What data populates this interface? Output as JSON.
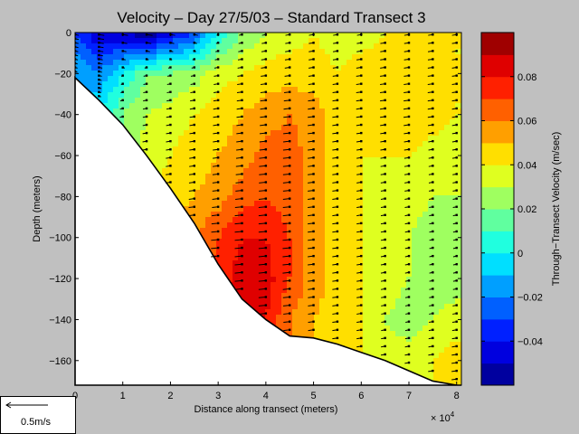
{
  "chart_data": {
    "type": "heatmap",
    "title": "Velocity – Day 27/5/03 – Standard Transect 3",
    "xlabel": "Distance along transect (meters)",
    "ylabel": "Depth (meters)",
    "x_exponent_label": "× 10",
    "x_exponent_power": "4",
    "xlim": [
      0,
      8.1
    ],
    "ylim": [
      -172,
      0
    ],
    "x_ticks": [
      "0",
      "1",
      "2",
      "3",
      "4",
      "5",
      "6",
      "7",
      "8"
    ],
    "y_ticks": [
      "0",
      "−20",
      "−40",
      "−60",
      "−80",
      "−100",
      "−120",
      "−140",
      "−160"
    ],
    "x_tick_values": [
      0,
      1,
      2,
      3,
      4,
      5,
      6,
      7,
      8
    ],
    "y_tick_values": [
      0,
      -20,
      -40,
      -60,
      -80,
      -100,
      -120,
      -140,
      -160
    ],
    "colorbar_label": "Through−Transect Velocity (m/sec)",
    "colorbar_ticks": [
      "0.08",
      "0.06",
      "0.04",
      "0.02",
      "0",
      "−0.02",
      "−0.04"
    ],
    "colorbar_tick_values": [
      0.08,
      0.06,
      0.04,
      0.02,
      0,
      -0.02,
      -0.04
    ],
    "clim": [
      -0.06,
      0.1
    ],
    "bottom_profile": {
      "x": [
        0,
        0.5,
        1.0,
        1.5,
        2.0,
        2.5,
        3.0,
        3.5,
        4.0,
        4.5,
        5.0,
        5.5,
        6.0,
        6.5,
        7.0,
        7.5,
        8.0,
        8.1
      ],
      "depth": [
        -22,
        -33,
        -45,
        -60,
        -76,
        -93,
        -113,
        -130,
        -140,
        -148,
        -149,
        -152,
        -156,
        -160,
        -165,
        -170,
        -172,
        -172
      ]
    },
    "velocity_field": {
      "description_units": "m/sec",
      "x": [
        0,
        0.5,
        1.0,
        1.5,
        2.0,
        2.5,
        3.0,
        3.5,
        4.0,
        4.5,
        5.0,
        5.5,
        6.0,
        6.5,
        7.0,
        7.5,
        8.0
      ],
      "depth": [
        0,
        -20,
        -40,
        -60,
        -80,
        -100,
        -120,
        -140,
        -160
      ],
      "values": [
        [
          -0.03,
          -0.05,
          -0.05,
          -0.06,
          -0.045,
          -0.03,
          0.0,
          0.02,
          0.03,
          0.035,
          0.04,
          0.035,
          0.035,
          0.04,
          0.04,
          0.04,
          0.04
        ],
        [
          -0.01,
          -0.02,
          0.0,
          0.02,
          0.02,
          0.025,
          0.035,
          0.04,
          0.045,
          0.045,
          0.045,
          0.04,
          0.045,
          0.045,
          0.045,
          0.045,
          0.04
        ],
        [
          null,
          0.0,
          0.02,
          0.03,
          0.035,
          0.04,
          0.045,
          0.05,
          0.055,
          0.06,
          0.055,
          0.045,
          0.045,
          0.045,
          0.05,
          0.045,
          0.04
        ],
        [
          null,
          null,
          null,
          0.035,
          0.04,
          0.045,
          0.05,
          0.055,
          0.065,
          0.065,
          0.055,
          0.045,
          0.04,
          0.04,
          0.04,
          0.035,
          0.035
        ],
        [
          null,
          null,
          null,
          null,
          0.045,
          0.05,
          0.055,
          0.065,
          0.07,
          0.065,
          0.055,
          0.045,
          0.04,
          0.035,
          0.035,
          0.03,
          0.03
        ],
        [
          null,
          null,
          null,
          null,
          null,
          0.06,
          0.07,
          0.08,
          0.08,
          0.07,
          0.055,
          0.045,
          0.04,
          0.035,
          0.03,
          0.025,
          0.025
        ],
        [
          null,
          null,
          null,
          null,
          null,
          null,
          0.075,
          0.085,
          0.085,
          0.07,
          0.055,
          0.045,
          0.04,
          0.035,
          0.03,
          0.025,
          0.025
        ],
        [
          null,
          null,
          null,
          null,
          null,
          null,
          null,
          0.09,
          0.08,
          0.06,
          0.05,
          0.045,
          0.04,
          0.03,
          0.025,
          0.03,
          0.035
        ],
        [
          null,
          null,
          null,
          null,
          null,
          null,
          null,
          null,
          null,
          null,
          null,
          0.045,
          0.04,
          0.035,
          0.035,
          0.04,
          0.045
        ]
      ]
    }
  },
  "scale_legend": {
    "label": "0.5m/s",
    "arrow_speed_mps": 0.5
  },
  "colors": {
    "figure_background": "#c0c0c0",
    "axes_background": "#ffffff",
    "colormap": "jet"
  }
}
